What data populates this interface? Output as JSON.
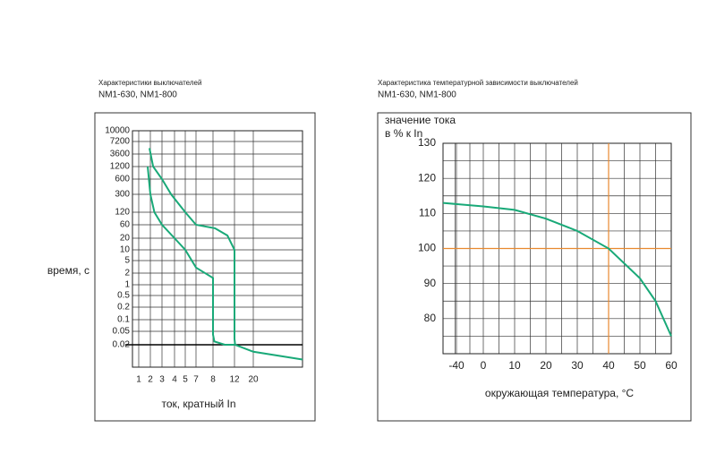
{
  "chart_data": [
    {
      "type": "line",
      "title": "Характеристики  выключателей",
      "subtitle": "NM1-630, NM1-800",
      "ylabel": "время, с",
      "xlabel": "ток, кратный   In",
      "xlim": [
        0.5,
        50
      ],
      "ylim": [
        0.005,
        10000
      ],
      "xticks": [
        1,
        2,
        3,
        4,
        5,
        7,
        8,
        12,
        20
      ],
      "yticks": [
        10000,
        7200,
        3600,
        1200,
        600,
        300,
        120,
        60,
        20,
        10,
        5,
        2,
        1,
        0.5,
        0.2,
        0.1,
        0.05,
        0.02
      ],
      "grid": true,
      "log": true,
      "ref_lines": {
        "y": 0.02,
        "color": "#000000"
      },
      "series": [
        {
          "color": "#19a978",
          "x": [
            1.9,
            2.2,
            3,
            3.7,
            5,
            7,
            8.3,
            10.5,
            12,
            12,
            12.2,
            20,
            50
          ],
          "values": [
            5000,
            1200,
            600,
            300,
            120,
            60,
            45,
            25,
            10,
            0.03,
            0.02,
            0.013,
            0.008
          ]
        },
        {
          "color": "#19a978",
          "x": [
            1.7,
            2,
            2.3,
            3,
            4,
            5,
            7,
            8,
            8,
            8.2,
            10,
            12
          ],
          "values": [
            1200,
            300,
            120,
            60,
            20,
            10,
            3,
            1.5,
            0.04,
            0.025,
            0.02,
            0.02
          ]
        }
      ]
    },
    {
      "type": "line",
      "title": "Характеристика  температурной  зависимости  выключателей",
      "subtitle": "NM1-630, NM1-800",
      "ylabel": [
        "значение тока",
        "в % к In"
      ],
      "xlabel": "окружающая   температура, °C",
      "xlim": [
        -50,
        60
      ],
      "ylim": [
        70,
        130
      ],
      "xticks": [
        -40,
        0,
        10,
        20,
        30,
        40,
        50,
        60
      ],
      "yticks": [
        80,
        90,
        100,
        110,
        120,
        130
      ],
      "grid": true,
      "log": false,
      "ref_lines": {
        "x": 40,
        "y": 100,
        "color": "#e8892f"
      },
      "series": [
        {
          "color": "#19a978",
          "x": [
            -50,
            0,
            10,
            20,
            30,
            40,
            50,
            55,
            60
          ],
          "values": [
            113,
            112,
            111,
            108.5,
            105,
            100,
            91.5,
            85,
            75
          ]
        }
      ]
    }
  ]
}
